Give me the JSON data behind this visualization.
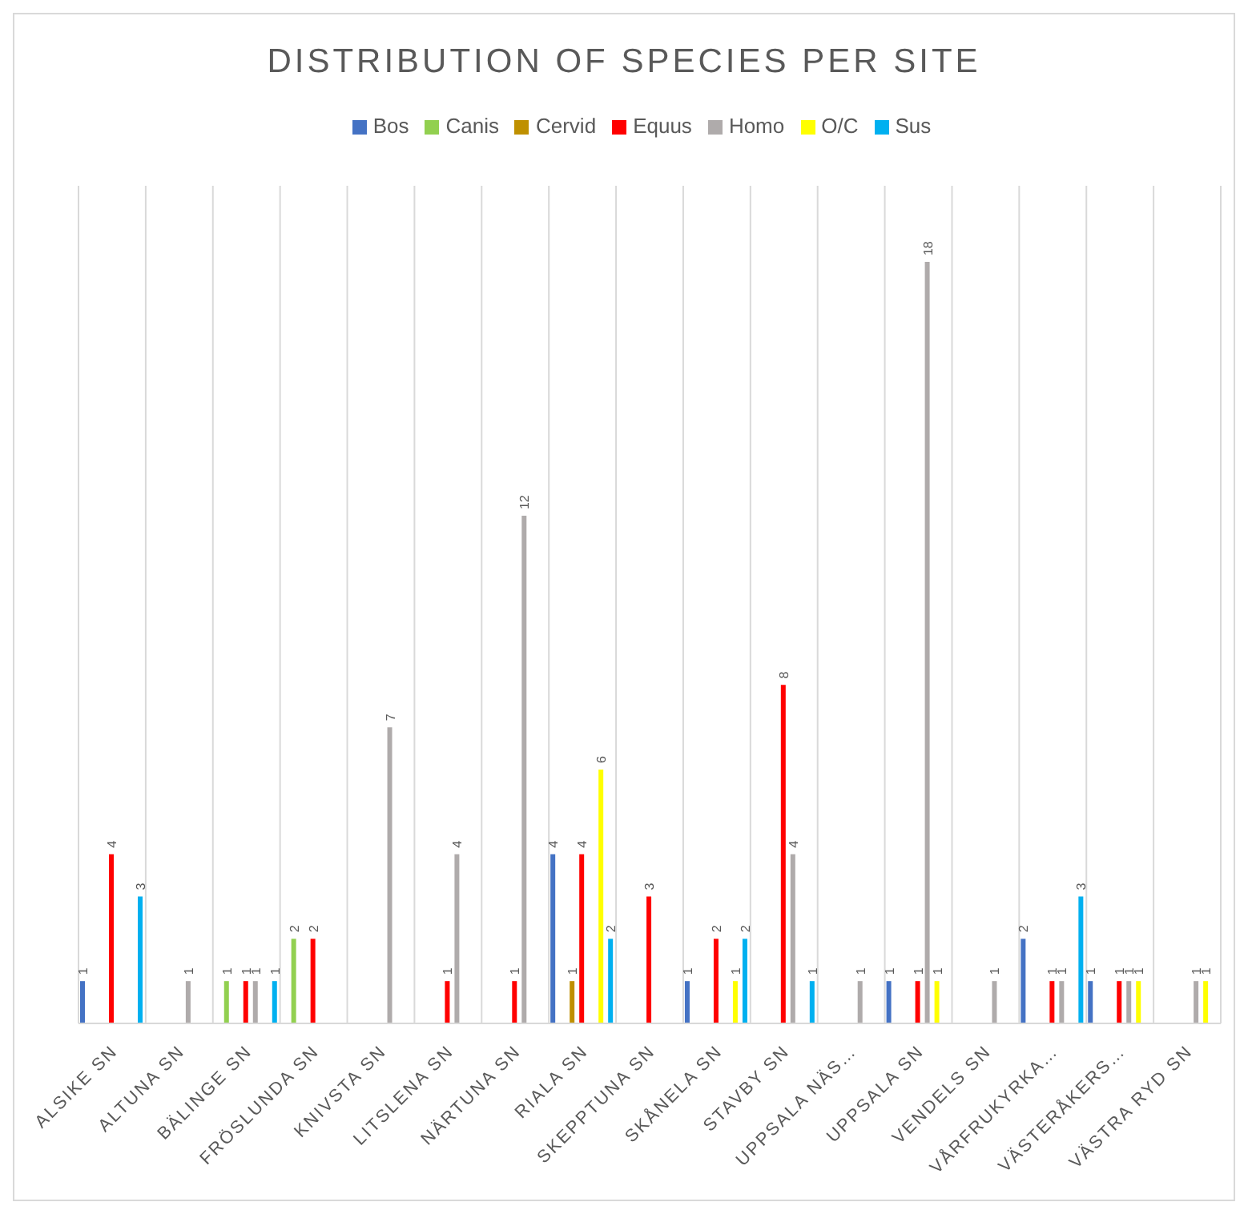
{
  "chart_data": {
    "type": "bar",
    "title": "DISTRIBUTION OF SPECIES PER SITE",
    "categories": [
      "ALSIKE SN",
      "ALTUNA SN",
      "BÄLINGE SN",
      "FRÖSLUNDA SN",
      "KNIVSTA SN",
      "LITSLENA SN",
      "NÄRTUNA SN",
      "RIALA SN",
      "SKEPPTUNA SN",
      "SKÅNELA SN",
      "STAVBY SN",
      "UPPSALA NÄS…",
      "UPPSALA SN",
      "VENDELS SN",
      "VÅRFRUKYRKA…",
      "VÄSTERÅKERS…",
      "VÄSTRA RYD SN"
    ],
    "series": [
      {
        "name": "Bos",
        "color": "#4472c4",
        "values": [
          1,
          null,
          null,
          null,
          null,
          null,
          null,
          4,
          null,
          1,
          null,
          null,
          1,
          null,
          2,
          1,
          null
        ]
      },
      {
        "name": "Canis",
        "color": "#92d050",
        "values": [
          null,
          null,
          1,
          2,
          null,
          null,
          null,
          null,
          null,
          null,
          null,
          null,
          null,
          null,
          null,
          null,
          null
        ]
      },
      {
        "name": "Cervid",
        "color": "#bf9000",
        "values": [
          null,
          null,
          null,
          null,
          null,
          null,
          null,
          1,
          null,
          null,
          null,
          null,
          null,
          null,
          null,
          null,
          null
        ]
      },
      {
        "name": "Equus",
        "color": "#ff0000",
        "values": [
          4,
          null,
          1,
          2,
          null,
          1,
          1,
          4,
          3,
          2,
          8,
          null,
          1,
          null,
          1,
          1,
          null
        ]
      },
      {
        "name": "Homo",
        "color": "#afabab",
        "values": [
          null,
          1,
          1,
          null,
          7,
          4,
          12,
          null,
          null,
          null,
          4,
          1,
          18,
          1,
          1,
          1,
          1
        ]
      },
      {
        "name": "O/C",
        "color": "#ffff00",
        "values": [
          null,
          null,
          null,
          null,
          null,
          null,
          null,
          6,
          null,
          1,
          null,
          null,
          1,
          null,
          null,
          1,
          1
        ]
      },
      {
        "name": "Sus",
        "color": "#00b0f0",
        "values": [
          3,
          null,
          1,
          null,
          null,
          null,
          null,
          2,
          null,
          2,
          1,
          null,
          null,
          null,
          3,
          null,
          null
        ]
      }
    ],
    "data_labels": true,
    "grid": "x",
    "legend": "top"
  }
}
